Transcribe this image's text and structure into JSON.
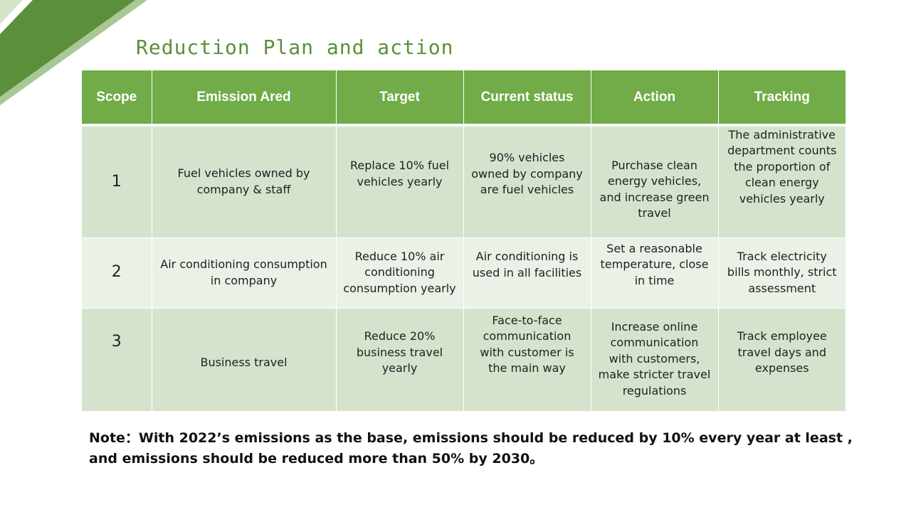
{
  "slide": {
    "title": "Reduction Plan and action",
    "accent_color": "#71ac48",
    "row_dark_color": "#d5e3cd",
    "row_light_color": "#ebf1e7"
  },
  "table": {
    "headers": [
      "Scope",
      "Emission Ared",
      "Target",
      "Current status",
      "Action",
      "Tracking"
    ],
    "rows": [
      [
        "1",
        "Fuel vehicles owned by company & staff",
        "Replace 10% fuel vehicles yearly",
        "90% vehicles owned by company are fuel vehicles",
        "Purchase clean energy vehicles, and increase green travel",
        "The administrative department counts the proportion of clean energy vehicles yearly"
      ],
      [
        "2",
        "Air conditioning consumption in company",
        "Reduce 10% air conditioning consumption yearly",
        "Air conditioning is used in all facilities",
        "Set a reasonable temperature, close in time",
        "Track electricity bills monthly, strict assessment"
      ],
      [
        "3",
        "Business travel",
        "Reduce 20% business travel yearly",
        "Face-to-face communication with customer is the main way",
        "Increase online communication with customers, make stricter travel regulations",
        "Track employee travel days and expenses"
      ]
    ]
  },
  "note": {
    "text": "Note：With 2022’s emissions as the base, emissions should be reduced by 10% every year at least , and emissions should be reduced more than 50% by 2030。"
  }
}
